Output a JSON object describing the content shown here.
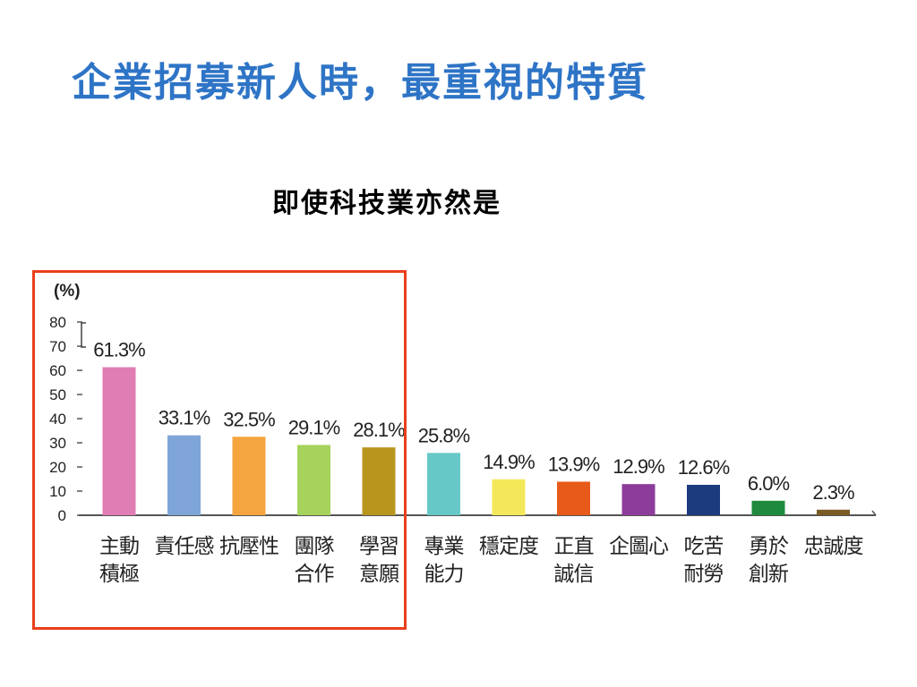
{
  "slide": {
    "title": "企業招募新人時，最重視的特質",
    "subtitle": "即使科技業亦然是"
  },
  "chart_data": {
    "type": "bar",
    "unit_label": "(%)",
    "categories": [
      [
        "主動",
        "積極"
      ],
      [
        "責任感"
      ],
      [
        "抗壓性"
      ],
      [
        "團隊",
        "合作"
      ],
      [
        "學習",
        "意願"
      ],
      [
        "專業",
        "能力"
      ],
      [
        "穩定度"
      ],
      [
        "正直",
        "誠信"
      ],
      [
        "企圖心"
      ],
      [
        "吃苦",
        "耐勞"
      ],
      [
        "勇於",
        "創新"
      ],
      [
        "忠誠度"
      ]
    ],
    "values": [
      61.3,
      33.1,
      32.5,
      29.1,
      28.1,
      25.8,
      14.9,
      13.9,
      12.9,
      12.6,
      6.0,
      2.3
    ],
    "value_labels": [
      "61.3%",
      "33.1%",
      "32.5%",
      "29.1%",
      "28.1%",
      "25.8%",
      "14.9%",
      "13.9%",
      "12.9%",
      "12.6%",
      "6.0%",
      "2.3%"
    ],
    "colors": [
      "#e07db4",
      "#7fa5d8",
      "#f5a540",
      "#a6d35b",
      "#b8961e",
      "#67c8c8",
      "#f2e85a",
      "#e85a1a",
      "#8e3c9c",
      "#1b3b7e",
      "#1e8a3e",
      "#7a5b24"
    ],
    "yticks": [
      "0",
      "10",
      "20",
      "30",
      "40",
      "50",
      "60",
      "70",
      "80"
    ],
    "ylim": [
      0,
      80
    ],
    "highlighted_count": 5,
    "highlight_color": "#e8401c"
  }
}
